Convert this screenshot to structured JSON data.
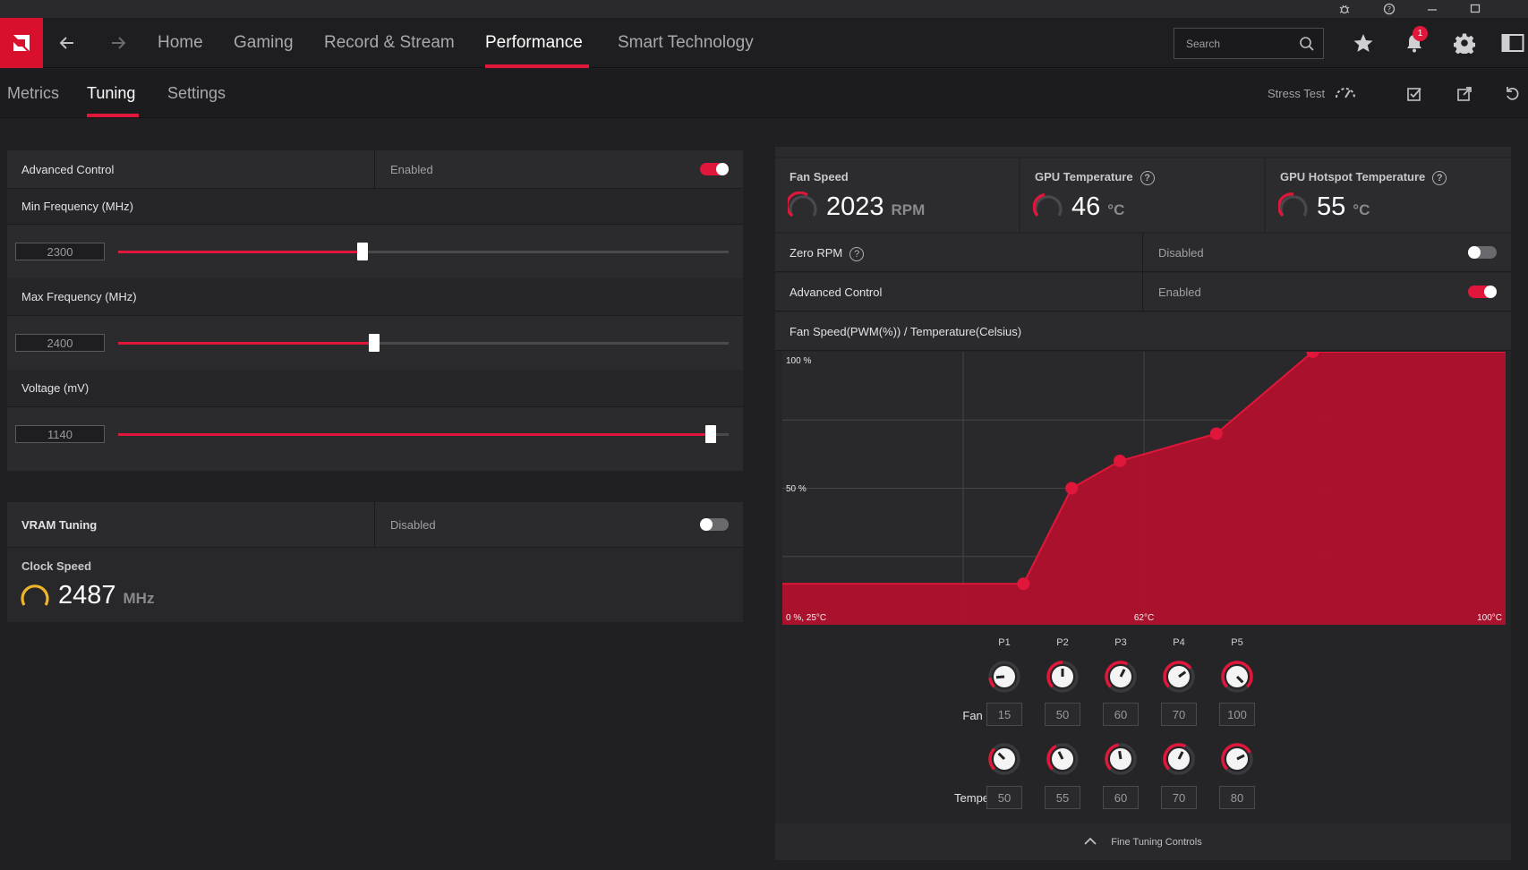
{
  "titlebar": {
    "icons": [
      "bug-icon",
      "help-icon",
      "minimize-icon",
      "maximize-icon"
    ]
  },
  "nav": {
    "tabs": [
      {
        "label": "Home"
      },
      {
        "label": "Gaming"
      },
      {
        "label": "Record & Stream"
      },
      {
        "label": "Performance"
      },
      {
        "label": "Smart Technology"
      }
    ],
    "active_tab": "Performance",
    "search_placeholder": "Search",
    "notification_count": "1"
  },
  "subnav": {
    "tabs": [
      {
        "label": "Metrics"
      },
      {
        "label": "Tuning"
      },
      {
        "label": "Settings"
      }
    ],
    "active_tab": "Tuning",
    "stress_test_label": "Stress Test"
  },
  "gpu_tuning": {
    "advanced_control": {
      "label": "Advanced Control",
      "status": "Enabled",
      "on": true
    },
    "min_freq": {
      "label": "Min Frequency (MHz)",
      "value": "2300",
      "fraction": 0.4
    },
    "max_freq": {
      "label": "Max Frequency (MHz)",
      "value": "2400",
      "fraction": 0.42
    },
    "voltage": {
      "label": "Voltage (mV)",
      "value": "1140",
      "fraction": 0.97
    }
  },
  "vram": {
    "label": "VRAM Tuning",
    "status": "Disabled",
    "on": false,
    "clock_label": "Clock Speed",
    "clock_value": "2487",
    "clock_unit": "MHz"
  },
  "fan": {
    "metrics": [
      {
        "label": "Fan Speed",
        "value": "2023",
        "unit": "RPM",
        "help": false
      },
      {
        "label": "GPU Temperature",
        "value": "46",
        "unit": "°C",
        "help": true
      },
      {
        "label": "GPU Hotspot Temperature",
        "value": "55",
        "unit": "°C",
        "help": true
      }
    ],
    "zero_rpm": {
      "label": "Zero RPM",
      "status": "Disabled",
      "on": false
    },
    "advanced_control": {
      "label": "Advanced Control",
      "status": "Enabled",
      "on": true
    },
    "curve_title": "Fan Speed(PWM(%)) / Temperature(Celsius)",
    "points_labels": [
      "P1",
      "P2",
      "P3",
      "P4",
      "P5"
    ],
    "fan_speed_label": "Fan Speed",
    "temperature_label": "Temperature",
    "fan_speed_values": [
      "15",
      "50",
      "60",
      "70",
      "100"
    ],
    "temperature_values": [
      "50",
      "55",
      "60",
      "70",
      "80"
    ],
    "fine_tuning_label": "Fine Tuning Controls"
  },
  "chart_data": {
    "type": "area",
    "title": "Fan Speed(PWM(%)) / Temperature(Celsius)",
    "x_tick_labels": [
      "0 %, 25°C",
      "62°C",
      "100°C"
    ],
    "y_tick_labels": [
      "100 %",
      "50 %"
    ],
    "xlim": [
      25,
      100
    ],
    "ylim": [
      0,
      100
    ],
    "series": [
      {
        "x": [
          25,
          50,
          55,
          60,
          70,
          80,
          100
        ],
        "y": [
          15,
          15,
          50,
          60,
          70,
          100,
          100
        ]
      }
    ],
    "points": [
      {
        "x": 50,
        "y": 15
      },
      {
        "x": 55,
        "y": 50
      },
      {
        "x": 60,
        "y": 60
      },
      {
        "x": 70,
        "y": 70
      },
      {
        "x": 80,
        "y": 100
      }
    ],
    "fill_color": "#b0102c",
    "point_color": "#e0173a",
    "grid": true
  }
}
